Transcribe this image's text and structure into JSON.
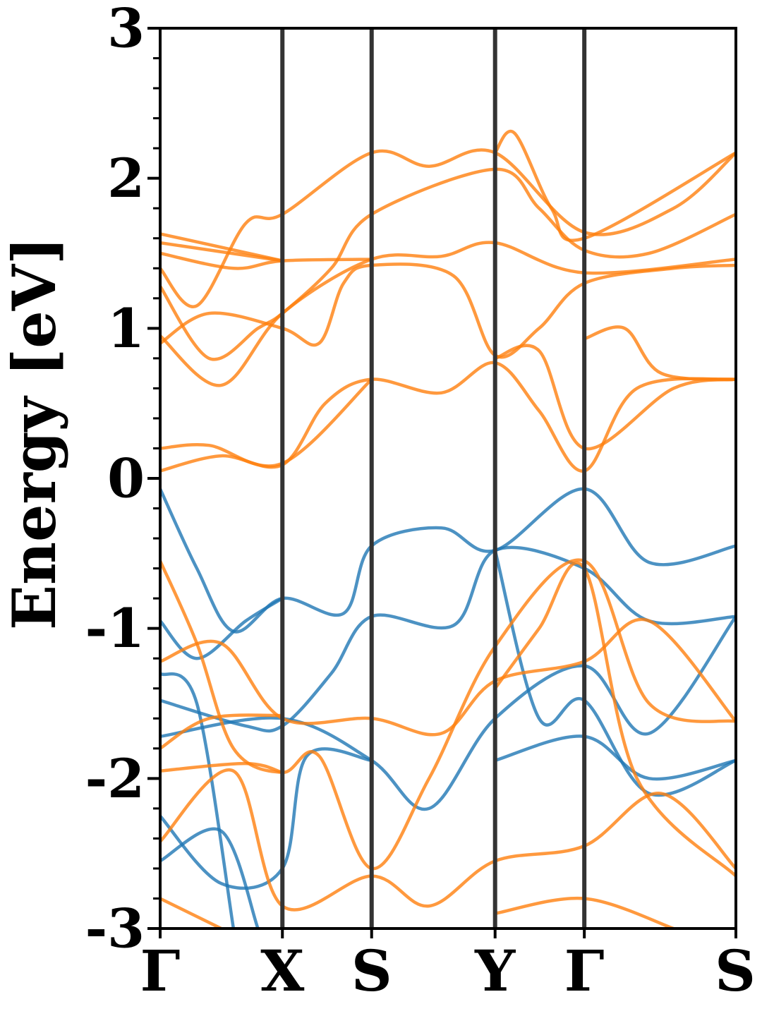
{
  "chart_data": {
    "type": "line",
    "title": "",
    "xlabel": "",
    "ylabel": "Energy [eV]",
    "ylim": [
      -3,
      3
    ],
    "yticks": [
      {
        "value": 3,
        "label": "3"
      },
      {
        "value": 2,
        "label": "2"
      },
      {
        "value": 1,
        "label": "1"
      },
      {
        "value": 0,
        "label": "0"
      },
      {
        "value": -1,
        "label": "-1"
      },
      {
        "value": -2,
        "label": "-2"
      },
      {
        "value": -3,
        "label": "-3"
      }
    ],
    "x_path_coordinate": "k-path distance with Γ=0, X=1, S=1.73, Y=2.74, Γ=3.47, S=4.71",
    "kpoints": [
      {
        "label": "Γ",
        "x": 0
      },
      {
        "label": "X",
        "x": 1
      },
      {
        "label": "S",
        "x": 1.73
      },
      {
        "label": "Y",
        "x": 2.74
      },
      {
        "label": "Γ",
        "x": 3.47
      },
      {
        "label": "S",
        "x": 4.71
      }
    ],
    "grid": false,
    "colors": {
      "valence": "#1f77b4",
      "conduction": "#ff7f0e",
      "kline": "#333333"
    },
    "series": [
      {
        "group": "conduction",
        "points": [
          [
            0,
            0.05
          ],
          [
            0.5,
            0.15
          ],
          [
            1,
            0.09
          ],
          [
            1.35,
            0.5
          ],
          [
            1.73,
            0.66
          ],
          [
            2.3,
            0.57
          ],
          [
            2.74,
            0.77
          ],
          [
            3.1,
            0.45
          ],
          [
            3.47,
            0.05
          ],
          [
            3.9,
            0.6
          ],
          [
            4.71,
            0.66
          ]
        ]
      },
      {
        "group": "conduction",
        "points": [
          [
            0,
            0.2
          ],
          [
            0.4,
            0.22
          ],
          [
            1,
            0.1
          ],
          [
            1.73,
            0.66
          ]
        ]
      },
      {
        "group": "conduction",
        "points": [
          [
            0,
            0.9
          ],
          [
            0.4,
            1.1
          ],
          [
            1,
            1.0
          ],
          [
            1.3,
            0.9
          ],
          [
            1.5,
            1.3
          ],
          [
            1.73,
            1.42
          ],
          [
            2.4,
            1.35
          ],
          [
            2.74,
            0.82
          ],
          [
            3.1,
            1.0
          ],
          [
            3.47,
            1.3
          ],
          [
            4.2,
            1.4
          ],
          [
            4.71,
            1.42
          ]
        ]
      },
      {
        "group": "conduction",
        "points": [
          [
            0,
            0.95
          ],
          [
            0.5,
            0.62
          ],
          [
            1,
            1.1
          ],
          [
            1.73,
            1.46
          ],
          [
            2.3,
            1.48
          ],
          [
            2.74,
            1.57
          ],
          [
            3.47,
            1.37
          ],
          [
            4.71,
            1.46
          ]
        ]
      },
      {
        "group": "conduction",
        "points": [
          [
            0,
            1.28
          ],
          [
            0.4,
            0.8
          ],
          [
            0.8,
            1.0
          ],
          [
            1,
            1.1
          ],
          [
            1.4,
            1.4
          ],
          [
            1.73,
            1.76
          ],
          [
            2.74,
            2.06
          ],
          [
            3.1,
            1.8
          ],
          [
            3.47,
            1.52
          ],
          [
            4,
            1.5
          ],
          [
            4.71,
            1.76
          ]
        ]
      },
      {
        "group": "conduction",
        "points": [
          [
            0,
            1.4
          ],
          [
            0.3,
            1.15
          ],
          [
            0.7,
            1.7
          ],
          [
            1,
            1.76
          ],
          [
            1.73,
            2.17
          ],
          [
            2.2,
            2.08
          ],
          [
            2.74,
            2.17
          ],
          [
            3.47,
            1.64
          ],
          [
            4.2,
            1.8
          ],
          [
            4.71,
            2.17
          ]
        ]
      },
      {
        "group": "conduction",
        "points": [
          [
            0,
            1.5
          ],
          [
            0.6,
            1.4
          ],
          [
            1,
            1.45
          ],
          [
            1.73,
            1.46
          ]
        ]
      },
      {
        "group": "conduction",
        "points": [
          [
            0,
            1.57
          ],
          [
            1,
            1.45
          ]
        ]
      },
      {
        "group": "conduction",
        "points": [
          [
            0,
            1.63
          ],
          [
            1,
            1.45
          ]
        ]
      },
      {
        "group": "conduction",
        "points": [
          [
            2.74,
            2.17
          ],
          [
            2.9,
            2.3
          ],
          [
            3.2,
            1.8
          ],
          [
            3.47,
            1.6
          ],
          [
            4.71,
            2.17
          ]
        ]
      },
      {
        "group": "conduction",
        "points": [
          [
            2.74,
            0.8
          ],
          [
            3.1,
            0.85
          ],
          [
            3.47,
            0.2
          ],
          [
            4.2,
            0.6
          ],
          [
            4.71,
            0.66
          ]
        ]
      },
      {
        "group": "conduction",
        "points": [
          [
            3.47,
            0.93
          ],
          [
            3.8,
            1.0
          ],
          [
            4.1,
            0.7
          ],
          [
            4.71,
            0.66
          ]
        ]
      },
      {
        "group": "valence",
        "points": [
          [
            0,
            -0.07
          ],
          [
            0.3,
            -0.6
          ],
          [
            0.6,
            -1.02
          ],
          [
            1,
            -0.8
          ],
          [
            1.5,
            -0.9
          ],
          [
            1.73,
            -0.45
          ],
          [
            2.3,
            -0.33
          ],
          [
            2.74,
            -0.48
          ],
          [
            3.47,
            -0.07
          ],
          [
            4,
            -0.56
          ],
          [
            4.71,
            -0.45
          ]
        ]
      },
      {
        "group": "valence",
        "points": [
          [
            0,
            -0.95
          ],
          [
            0.3,
            -1.2
          ],
          [
            0.7,
            -0.95
          ],
          [
            1,
            -0.8
          ]
        ]
      },
      {
        "group": "valence",
        "points": [
          [
            0,
            -1.48
          ],
          [
            0.7,
            -1.65
          ],
          [
            1,
            -1.65
          ],
          [
            1.4,
            -1.3
          ],
          [
            1.73,
            -0.92
          ],
          [
            2.4,
            -0.98
          ],
          [
            2.74,
            -0.48
          ],
          [
            3.47,
            -0.6
          ],
          [
            4,
            -0.95
          ],
          [
            4.71,
            -0.92
          ]
        ]
      },
      {
        "group": "valence",
        "points": [
          [
            0,
            -1.72
          ],
          [
            1,
            -1.6
          ],
          [
            1.73,
            -1.88
          ],
          [
            2.2,
            -2.2
          ],
          [
            2.74,
            -1.6
          ],
          [
            3.47,
            -1.25
          ],
          [
            4,
            -1.7
          ],
          [
            4.71,
            -0.92
          ]
        ]
      },
      {
        "group": "valence",
        "points": [
          [
            0,
            -2.25
          ],
          [
            0.5,
            -2.7
          ],
          [
            1,
            -2.6
          ],
          [
            1.2,
            -1.85
          ],
          [
            1.73,
            -1.88
          ]
        ]
      },
      {
        "group": "valence",
        "points": [
          [
            0,
            -2.55
          ],
          [
            0.5,
            -2.35
          ],
          [
            0.8,
            -3.0
          ]
        ]
      },
      {
        "group": "valence",
        "points": [
          [
            0,
            -1.3
          ],
          [
            0.3,
            -1.5
          ],
          [
            0.6,
            -3.0
          ]
        ]
      },
      {
        "group": "valence",
        "points": [
          [
            2.74,
            -0.48
          ],
          [
            3.1,
            -1.6
          ],
          [
            3.47,
            -1.48
          ],
          [
            4,
            -2.1
          ],
          [
            4.71,
            -1.88
          ]
        ]
      },
      {
        "group": "valence",
        "points": [
          [
            2.74,
            -1.88
          ],
          [
            3.47,
            -1.72
          ],
          [
            4,
            -2.0
          ],
          [
            4.71,
            -1.88
          ]
        ]
      },
      {
        "group": "conduction",
        "points": [
          [
            0,
            -0.55
          ],
          [
            0.3,
            -1.1
          ],
          [
            0.6,
            -1.8
          ],
          [
            1,
            -1.96
          ],
          [
            1.3,
            -1.85
          ],
          [
            1.73,
            -2.6
          ],
          [
            2.2,
            -2.0
          ],
          [
            2.74,
            -1.12
          ],
          [
            3.47,
            -0.55
          ],
          [
            4,
            -1.5
          ],
          [
            4.71,
            -1.62
          ]
        ]
      },
      {
        "group": "conduction",
        "points": [
          [
            0,
            -1.22
          ],
          [
            0.5,
            -1.1
          ],
          [
            1,
            -1.6
          ],
          [
            1.73,
            -1.6
          ],
          [
            2.3,
            -1.7
          ],
          [
            2.74,
            -1.35
          ],
          [
            3.47,
            -1.22
          ],
          [
            4,
            -0.95
          ],
          [
            4.71,
            -1.62
          ]
        ]
      },
      {
        "group": "conduction",
        "points": [
          [
            0,
            -1.8
          ],
          [
            0.4,
            -1.6
          ],
          [
            1,
            -1.58
          ]
        ]
      },
      {
        "group": "conduction",
        "points": [
          [
            0,
            -1.95
          ],
          [
            0.7,
            -1.9
          ],
          [
            1,
            -1.96
          ]
        ]
      },
      {
        "group": "conduction",
        "points": [
          [
            0,
            -2.42
          ],
          [
            0.6,
            -1.95
          ],
          [
            1,
            -2.85
          ],
          [
            1.73,
            -2.65
          ],
          [
            2.2,
            -2.85
          ],
          [
            2.74,
            -2.55
          ],
          [
            3.47,
            -2.45
          ],
          [
            4.1,
            -2.1
          ],
          [
            4.71,
            -2.6
          ]
        ]
      },
      {
        "group": "conduction",
        "points": [
          [
            0,
            -2.8
          ],
          [
            0.5,
            -3.0
          ]
        ]
      },
      {
        "group": "conduction",
        "points": [
          [
            2.74,
            -1.4
          ],
          [
            3.1,
            -1.0
          ],
          [
            3.47,
            -0.6
          ],
          [
            3.9,
            -2.0
          ],
          [
            4.71,
            -2.65
          ]
        ]
      },
      {
        "group": "conduction",
        "points": [
          [
            2.74,
            -2.9
          ],
          [
            3.47,
            -2.8
          ],
          [
            4.2,
            -3.0
          ]
        ]
      }
    ]
  }
}
